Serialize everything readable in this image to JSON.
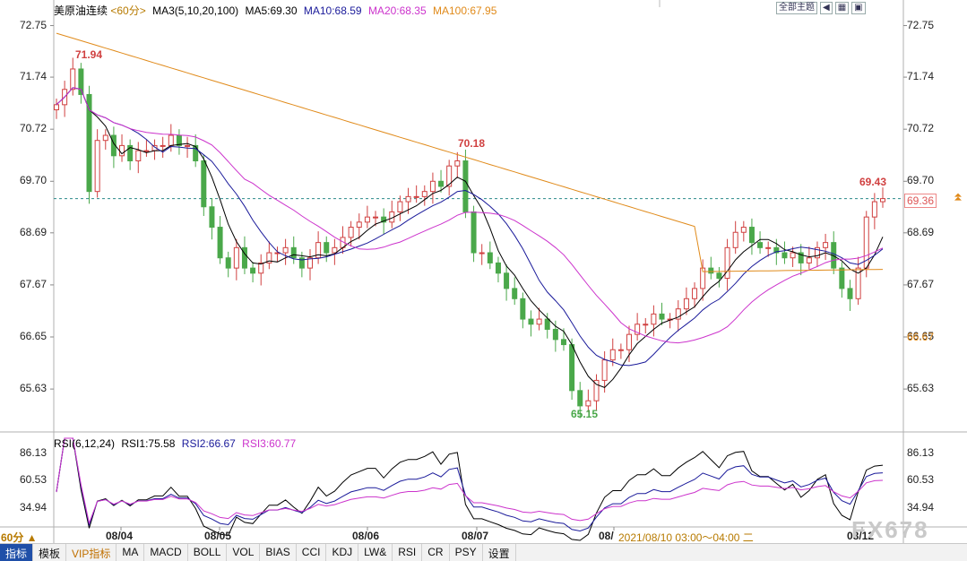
{
  "chart_header": {
    "symbol": "美原油连续",
    "period": "<60分>",
    "ma3_label": "MA3(5,10,20,100)",
    "ma5": "MA5:69.30",
    "ma10": "MA10:68.59",
    "ma20": "MA20:68.35",
    "ma100": "MA100:67.95",
    "colors": {
      "ma5": "#000000",
      "ma10": "#1a1a9a",
      "ma20": "#cc33cc",
      "ma100": "#e08a1a",
      "up": "#d04040",
      "down": "#4aa84a"
    }
  },
  "toolbar": {
    "theme_button": "全部主题",
    "icon1": "nav-left-icon",
    "icon2": "grid-icon",
    "icon3": "settings-icon"
  },
  "price_axis": {
    "left": [
      "72.75",
      "71.74",
      "70.72",
      "69.70",
      "68.69",
      "67.67",
      "66.65",
      "65.63"
    ],
    "right": [
      "72.75",
      "71.74",
      "70.72",
      "69.70",
      "68.69",
      "67.67",
      "66.65",
      "65.63"
    ],
    "current_price_tag": "69.36",
    "ma100_tag": "66.67"
  },
  "annotations": {
    "high1": "71.94",
    "high2": "70.18",
    "high3": "69.43",
    "low1": "65.15"
  },
  "rsi_header": {
    "title": "RSI(6,12,24)",
    "rsi1": "RSI1:75.58",
    "rsi2": "RSI2:66.67",
    "rsi3": "RSI3:60.77"
  },
  "rsi_axis": {
    "left": [
      "86.13",
      "60.53",
      "34.94"
    ],
    "right": [
      "86.13",
      "60.53",
      "34.94"
    ]
  },
  "x_axis": {
    "dates": [
      "08/04",
      "08/05",
      "08/06",
      "08/07",
      "08/",
      "08/12"
    ],
    "hover_time": "2021/08/10 03:00～04:00 二",
    "period_button": "60分 ▲"
  },
  "bottom_tabs": [
    "指标",
    "模板",
    "VIP指标",
    "MA",
    "MACD",
    "BOLL",
    "VOL",
    "BIAS",
    "CCI",
    "KDJ",
    "LW&",
    "RSI",
    "CR",
    "PSY",
    "设置"
  ],
  "watermark": "FX678",
  "chart_data": {
    "type": "candlestick",
    "title": "美原油连续",
    "ylim": [
      65.0,
      72.9
    ],
    "x_labels": [
      "08/04",
      "08/05",
      "08/06",
      "08/07",
      "08/",
      "08/12"
    ],
    "closes": [
      71.2,
      71.5,
      71.9,
      71.4,
      69.5,
      70.5,
      70.6,
      70.2,
      70.4,
      70.1,
      70.3,
      70.3,
      70.4,
      70.4,
      70.6,
      70.4,
      70.4,
      70.1,
      69.2,
      68.8,
      68.2,
      68.0,
      68.4,
      68.0,
      67.9,
      68.1,
      68.3,
      68.3,
      68.4,
      68.2,
      68.0,
      68.2,
      68.5,
      68.3,
      68.4,
      68.6,
      68.8,
      68.9,
      69.0,
      69.0,
      68.9,
      69.1,
      69.3,
      69.4,
      69.4,
      69.5,
      69.7,
      69.6,
      70.0,
      70.1,
      69.1,
      68.3,
      68.3,
      68.1,
      67.9,
      67.6,
      67.4,
      67.0,
      66.9,
      67.0,
      66.8,
      66.6,
      66.5,
      65.6,
      65.3,
      65.4,
      65.8,
      66.2,
      66.4,
      66.4,
      66.7,
      66.9,
      66.9,
      67.1,
      67.0,
      67.0,
      67.2,
      67.4,
      67.6,
      68.0,
      67.9,
      67.8,
      68.4,
      68.7,
      68.8,
      68.5,
      68.4,
      68.4,
      68.3,
      68.2,
      68.3,
      68.1,
      68.2,
      68.4,
      68.5,
      68.0,
      67.6,
      67.4,
      68.0,
      69.0,
      69.3,
      69.36
    ],
    "ma5": "series computed",
    "rsi_ylim": [
      20,
      95
    ]
  }
}
